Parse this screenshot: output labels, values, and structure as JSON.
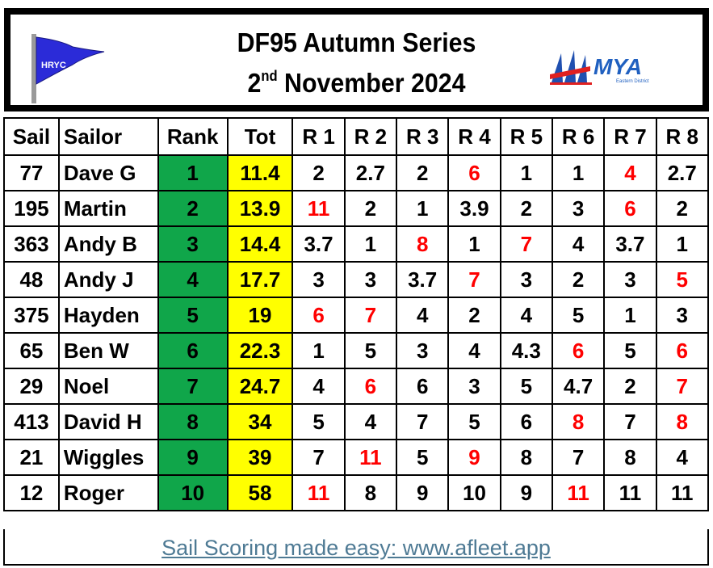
{
  "header": {
    "title_line1": "DF95 Autumn Series",
    "date_day": "2",
    "date_suffix": "nd",
    "date_rest": "November 2024",
    "club_logo_text": "HRYC",
    "mya_logo_text": "MYA",
    "mya_logo_subtext": "Eastern District"
  },
  "columns": [
    "Sail",
    "Sailor",
    "Rank",
    "Tot",
    "R 1",
    "R 2",
    "R 3",
    "R 4",
    "R 5",
    "R 6",
    "R 7",
    "R 8"
  ],
  "colors": {
    "rank_bg": "#10a64a",
    "total_bg": "#ffff00",
    "discard_text": "#ff0000"
  },
  "rows": [
    {
      "sail": "77",
      "sailor": "Dave G",
      "rank": "1",
      "tot": "11.4",
      "races": [
        "2",
        "2.7",
        "2",
        "6",
        "1",
        "1",
        "4",
        "2.7"
      ],
      "discards": [
        3,
        6
      ]
    },
    {
      "sail": "195",
      "sailor": "Martin",
      "rank": "2",
      "tot": "13.9",
      "races": [
        "11",
        "2",
        "1",
        "3.9",
        "2",
        "3",
        "6",
        "2"
      ],
      "discards": [
        0,
        6
      ]
    },
    {
      "sail": "363",
      "sailor": "Andy B",
      "rank": "3",
      "tot": "14.4",
      "races": [
        "3.7",
        "1",
        "8",
        "1",
        "7",
        "4",
        "3.7",
        "1"
      ],
      "discards": [
        2,
        4
      ]
    },
    {
      "sail": "48",
      "sailor": "Andy J",
      "rank": "4",
      "tot": "17.7",
      "races": [
        "3",
        "3",
        "3.7",
        "7",
        "3",
        "2",
        "3",
        "5"
      ],
      "discards": [
        3,
        7
      ]
    },
    {
      "sail": "375",
      "sailor": "Hayden",
      "rank": "5",
      "tot": "19",
      "races": [
        "6",
        "7",
        "4",
        "2",
        "4",
        "5",
        "1",
        "3"
      ],
      "discards": [
        0,
        1
      ]
    },
    {
      "sail": "65",
      "sailor": "Ben W",
      "rank": "6",
      "tot": "22.3",
      "races": [
        "1",
        "5",
        "3",
        "4",
        "4.3",
        "6",
        "5",
        "6"
      ],
      "discards": [
        5,
        7
      ]
    },
    {
      "sail": "29",
      "sailor": "Noel",
      "rank": "7",
      "tot": "24.7",
      "races": [
        "4",
        "6",
        "6",
        "3",
        "5",
        "4.7",
        "2",
        "7"
      ],
      "discards": [
        1,
        7
      ]
    },
    {
      "sail": "413",
      "sailor": "David H",
      "rank": "8",
      "tot": "34",
      "races": [
        "5",
        "4",
        "7",
        "5",
        "6",
        "8",
        "7",
        "8"
      ],
      "discards": [
        5,
        7
      ]
    },
    {
      "sail": "21",
      "sailor": "Wiggles",
      "rank": "9",
      "tot": "39",
      "races": [
        "7",
        "11",
        "5",
        "9",
        "8",
        "7",
        "8",
        "4"
      ],
      "discards": [
        1,
        3
      ]
    },
    {
      "sail": "12",
      "sailor": "Roger",
      "rank": "10",
      "tot": "58",
      "races": [
        "11",
        "8",
        "9",
        "10",
        "9",
        "11",
        "11",
        "11"
      ],
      "discards": [
        0,
        5
      ]
    }
  ],
  "footer": {
    "link_text": "Sail Scoring made easy: www.afleet.app"
  }
}
